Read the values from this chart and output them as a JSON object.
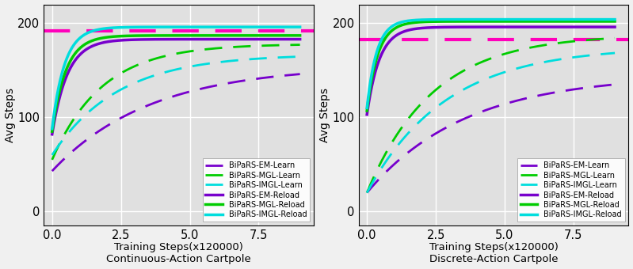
{
  "fig_width": 7.99,
  "fig_height": 3.4,
  "dpi": 100,
  "bg_color": "#e0e0e0",
  "fig_bg_color": "#f0f0f0",
  "x_lim": [
    -0.3,
    9.5
  ],
  "x_ticks": [
    0.0,
    2.5,
    5.0,
    7.5
  ],
  "y_lim": [
    -15,
    220
  ],
  "y_ticks": [
    0,
    100,
    200
  ],
  "plots": [
    {
      "title": "Continuous-Action Cartpole",
      "xlabel": "Training Steps(x120000)",
      "ylabel": "Avg Steps",
      "series": [
        {
          "label": "BiPaRS-EM-Learn",
          "color": "#7700cc",
          "linestyle": "dashed",
          "linewidth": 2.0,
          "x0": 0.0,
          "y0": 43,
          "yf": 155,
          "k": 0.28
        },
        {
          "label": "BiPaRS-MGL-Learn",
          "color": "#00cc00",
          "linestyle": "dashed",
          "linewidth": 2.0,
          "x0": 0.0,
          "y0": 55,
          "yf": 178,
          "k": 0.55
        },
        {
          "label": "BiPaRS-IMGL-Learn",
          "color": "#00dddd",
          "linestyle": "dashed",
          "linewidth": 2.0,
          "x0": 0.0,
          "y0": 60,
          "yf": 167,
          "k": 0.42
        },
        {
          "label": "BiPaRS-EM-Reload",
          "color": "#7700cc",
          "linestyle": "solid",
          "linewidth": 2.5,
          "x0": 0.0,
          "y0": 82,
          "yf": 183,
          "k": 1.8
        },
        {
          "label": "BiPaRS-MGL-Reload",
          "color": "#00cc00",
          "linestyle": "solid",
          "linewidth": 2.5,
          "x0": 0.0,
          "y0": 85,
          "yf": 187,
          "k": 2.0
        },
        {
          "label": "BiPaRS-IMGL-Reload",
          "color": "#00dddd",
          "linestyle": "solid",
          "linewidth": 2.5,
          "x0": 0.0,
          "y0": 88,
          "yf": 196,
          "k": 2.2
        }
      ],
      "extra_line": {
        "y": 192,
        "color": "#ff00bb",
        "linewidth": 3.0
      }
    },
    {
      "title": "Discrete-Action Cartpole",
      "xlabel": "Training Steps(x120000)",
      "ylabel": "Avg Steps",
      "series": [
        {
          "label": "BiPaRS-EM-Learn",
          "color": "#7700cc",
          "linestyle": "dashed",
          "linewidth": 2.0,
          "x0": 0.0,
          "y0": 20,
          "yf": 145,
          "k": 0.28
        },
        {
          "label": "BiPaRS-MGL-Learn",
          "color": "#00cc00",
          "linestyle": "dashed",
          "linewidth": 2.0,
          "x0": 0.0,
          "y0": 20,
          "yf": 188,
          "k": 0.42
        },
        {
          "label": "BiPaRS-IMGL-Learn",
          "color": "#00dddd",
          "linestyle": "dashed",
          "linewidth": 2.0,
          "x0": 0.0,
          "y0": 20,
          "yf": 175,
          "k": 0.35
        },
        {
          "label": "BiPaRS-EM-Reload",
          "color": "#7700cc",
          "linestyle": "solid",
          "linewidth": 2.5,
          "x0": 0.0,
          "y0": 103,
          "yf": 196,
          "k": 2.2
        },
        {
          "label": "BiPaRS-MGL-Reload",
          "color": "#00cc00",
          "linestyle": "solid",
          "linewidth": 2.5,
          "x0": 0.0,
          "y0": 107,
          "yf": 202,
          "k": 2.5
        },
        {
          "label": "BiPaRS-IMGL-Reload",
          "color": "#00dddd",
          "linestyle": "solid",
          "linewidth": 2.5,
          "x0": 0.0,
          "y0": 110,
          "yf": 204,
          "k": 2.8
        }
      ],
      "extra_line": {
        "y": 183,
        "color": "#ff00bb",
        "linewidth": 3.0
      }
    }
  ],
  "legend_labels": [
    "BiPaRS-EM-Learn",
    "BiPaRS-MGL-Learn",
    "BiPaRS-IMGL-Learn",
    "BiPaRS-EM-Reload",
    "BiPaRS-MGL-Reload",
    "BiPaRS-IMGL-Reload"
  ],
  "legend_colors": [
    "#7700cc",
    "#00cc00",
    "#00dddd",
    "#7700cc",
    "#00cc00",
    "#00dddd"
  ],
  "legend_linestyles": [
    "dashed",
    "dashed",
    "dashed",
    "solid",
    "solid",
    "solid"
  ]
}
